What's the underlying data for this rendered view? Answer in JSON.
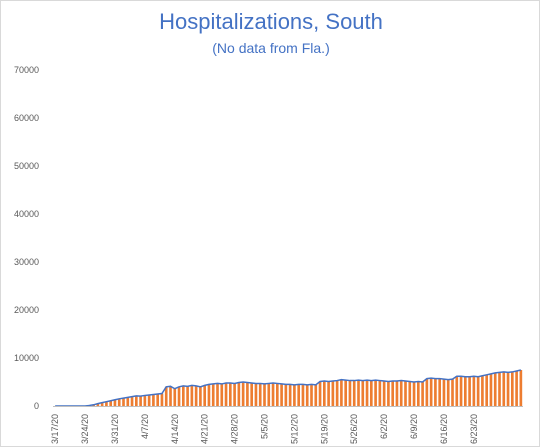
{
  "chart_data": {
    "type": "bar",
    "title": "Hospitalizations, South",
    "subtitle": "(No data from Fla.)",
    "xlabel": "",
    "ylabel": "",
    "ylim": [
      0,
      70000
    ],
    "yticks": [
      "0",
      "10000",
      "20000",
      "30000",
      "40000",
      "50000",
      "60000",
      "70000"
    ],
    "xtick_labels": [
      "3/17/20",
      "3/24/20",
      "3/31/20",
      "4/7/20",
      "4/14/20",
      "4/21/20",
      "4/28/20",
      "5/5/20",
      "5/12/20",
      "5/19/20",
      "5/26/20",
      "6/2/20",
      "6/9/20",
      "6/16/20",
      "6/23/20"
    ],
    "grid": false,
    "legend": "none",
    "bar_color": "#ed7d31",
    "line_color": "#4472c4",
    "start_date": "3/17/20",
    "values": [
      0,
      0,
      0,
      0,
      0,
      0,
      0,
      0,
      100,
      250,
      500,
      700,
      900,
      1100,
      1300,
      1500,
      1650,
      1800,
      1950,
      2100,
      2050,
      2200,
      2300,
      2400,
      2500,
      2600,
      4000,
      4100,
      3600,
      4000,
      4200,
      4100,
      4300,
      4200,
      4000,
      4300,
      4500,
      4600,
      4700,
      4600,
      4800,
      4800,
      4700,
      4900,
      5000,
      4900,
      4800,
      4700,
      4700,
      4600,
      4700,
      4800,
      4700,
      4600,
      4500,
      4500,
      4400,
      4500,
      4500,
      4400,
      4500,
      4400,
      5100,
      5200,
      5100,
      5200,
      5300,
      5500,
      5400,
      5300,
      5300,
      5400,
      5300,
      5400,
      5300,
      5400,
      5300,
      5200,
      5100,
      5200,
      5200,
      5300,
      5200,
      5100,
      5000,
      5100,
      5000,
      5700,
      5800,
      5700,
      5700,
      5600,
      5500,
      5600,
      6200,
      6200,
      6100,
      6100,
      6200,
      6100,
      6300,
      6500,
      6700,
      6900,
      7000,
      7100,
      7000,
      7100,
      7300,
      7500
    ]
  }
}
